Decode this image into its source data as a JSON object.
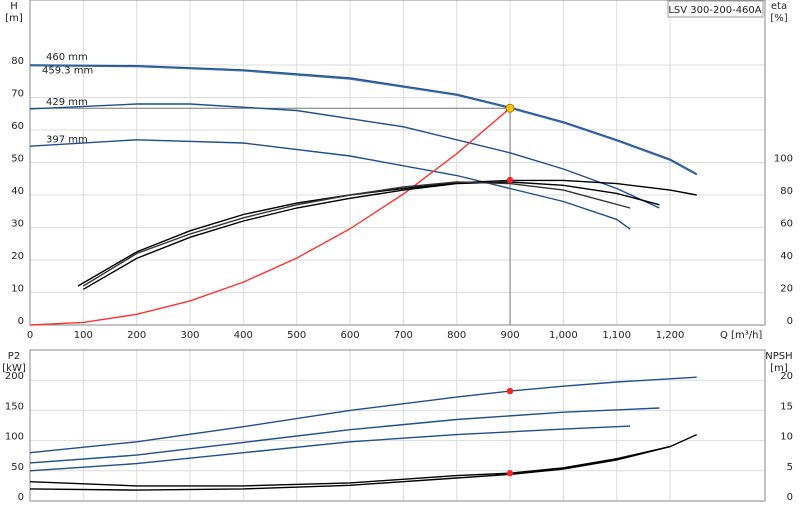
{
  "chart_data": [
    {
      "type": "line",
      "legend_title": "LSV 300-200-460A",
      "y_label": [
        "H",
        "[m]"
      ],
      "y2_label": [
        "eta",
        "[%]"
      ],
      "x_label": "Q [m³/h]",
      "xlim": [
        0,
        1378
      ],
      "ylim": [
        0,
        100
      ],
      "y2lim": [
        0,
        200
      ],
      "grid": true,
      "xticks": [
        0,
        100,
        200,
        300,
        400,
        500,
        600,
        700,
        800,
        900,
        {
          "value": 1000,
          "label": "1,000"
        },
        {
          "value": 1100,
          "label": "1,100"
        },
        {
          "value": 1200,
          "label": "1,200"
        }
      ],
      "yticks": [
        0,
        10,
        20,
        30,
        40,
        50,
        60,
        70,
        80
      ],
      "y2ticks": [
        0,
        20,
        40,
        60,
        80,
        100
      ],
      "series": [
        {
          "name": "460 mm",
          "color": "#1f4e8c",
          "x": [
            0,
            200,
            400,
            600,
            800,
            900,
            1000,
            1100,
            1200,
            1250
          ],
          "values": [
            80,
            79.8,
            78.5,
            76,
            71,
            67,
            62.5,
            57,
            51,
            46.5
          ]
        },
        {
          "name": "459.3 mm",
          "color": "#3a6aa8",
          "x": [
            0,
            200,
            400,
            600,
            800,
            900,
            1000,
            1100,
            1200,
            1250
          ],
          "values": [
            79.8,
            79.5,
            78.2,
            75.7,
            70.7,
            66.7,
            62.2,
            56.7,
            50.7,
            46.2
          ]
        },
        {
          "name": "429 mm",
          "color": "#1f4e8c",
          "x": [
            0,
            200,
            300,
            500,
            700,
            900,
            1000,
            1100,
            1180
          ],
          "values": [
            66.5,
            68,
            68,
            66,
            61,
            53,
            48,
            42,
            36
          ]
        },
        {
          "name": "397 mm",
          "color": "#1f4e8c",
          "x": [
            0,
            200,
            400,
            600,
            800,
            900,
            1000,
            1100,
            1125
          ],
          "values": [
            55,
            57,
            56,
            52,
            46,
            42,
            38,
            32.5,
            29.5
          ]
        },
        {
          "color": "#ff3333",
          "x": [
            0,
            100,
            200,
            300,
            400,
            500,
            600,
            700,
            800,
            900
          ],
          "values": [
            0,
            0.8,
            3.3,
            7.4,
            13.2,
            20.6,
            29.6,
            40.3,
            52.7,
            66.7
          ]
        },
        {
          "color": "#000000",
          "axis": "y2",
          "x": [
            90,
            200,
            300,
            400,
            500,
            600,
            700,
            800,
            900,
            1000,
            1100,
            1200,
            1250
          ],
          "values": [
            24,
            45,
            58,
            68,
            75,
            80,
            84,
            87.5,
            89,
            89,
            87,
            83,
            80
          ]
        },
        {
          "color": "#000000",
          "axis": "y2",
          "x": [
            100,
            200,
            300,
            400,
            500,
            600,
            700,
            800,
            900,
            1000,
            1100,
            1180
          ],
          "values": [
            22,
            41,
            54,
            64,
            72,
            78,
            83,
            87,
            88,
            86,
            81,
            74
          ]
        },
        {
          "color": "#333333",
          "axis": "y2",
          "x": [
            100,
            200,
            300,
            400,
            500,
            600,
            700,
            800,
            900,
            1000,
            1125
          ],
          "values": [
            24,
            44,
            56,
            66,
            74,
            80,
            85,
            88,
            87,
            83,
            72
          ]
        }
      ],
      "markers": [
        {
          "x": 900,
          "y": 66.7,
          "color": "#f5c518"
        },
        {
          "x": 900,
          "y": 89.2,
          "axis": "y2",
          "color": "#ff2222"
        }
      ]
    },
    {
      "type": "line",
      "y_label": [
        "P2",
        "[kW]"
      ],
      "y2_label": [
        "NPSH",
        "[m]"
      ],
      "xlim": [
        0,
        1378
      ],
      "ylim": [
        0,
        250
      ],
      "y2lim": [
        0,
        25
      ],
      "grid": true,
      "xticks": [
        0,
        100,
        200,
        300,
        400,
        500,
        600,
        700,
        800,
        900,
        1000,
        1100,
        1200
      ],
      "yticks": [
        0,
        50,
        100,
        150,
        200
      ],
      "y2ticks": [
        0,
        5,
        10,
        15,
        20
      ],
      "series": [
        {
          "color": "#1f4e8c",
          "x": [
            0,
            200,
            400,
            600,
            800,
            900,
            1000,
            1100,
            1250
          ],
          "values": [
            80,
            98,
            123,
            150,
            172,
            182,
            190,
            197,
            205
          ]
        },
        {
          "color": "#1f4e8c",
          "x": [
            0,
            200,
            400,
            600,
            800,
            1000,
            1180
          ],
          "values": [
            63,
            76,
            97,
            118,
            135,
            147,
            154
          ]
        },
        {
          "color": "#1f4e8c",
          "x": [
            0,
            200,
            400,
            600,
            800,
            1000,
            1125
          ],
          "values": [
            50,
            62,
            80,
            98,
            110,
            119,
            124
          ]
        },
        {
          "color": "#000000",
          "axis": "y2",
          "x": [
            0,
            200,
            400,
            600,
            800,
            900,
            1000,
            1100,
            1200,
            1250
          ],
          "values": [
            3.2,
            2.5,
            2.5,
            3,
            4.2,
            4.6,
            5.5,
            7,
            9,
            11
          ]
        },
        {
          "color": "#000000",
          "axis": "y2",
          "x": [
            0,
            200,
            400,
            600,
            800,
            900,
            1000,
            1100,
            1200
          ],
          "values": [
            2,
            1.8,
            2,
            2.6,
            3.8,
            4.4,
            5.3,
            6.8,
            9
          ]
        }
      ],
      "markers": [
        {
          "x": 900,
          "y": 182,
          "color": "#ff2222"
        },
        {
          "x": 900,
          "y": 4.6,
          "axis": "y2",
          "color": "#ff2222"
        }
      ]
    }
  ]
}
